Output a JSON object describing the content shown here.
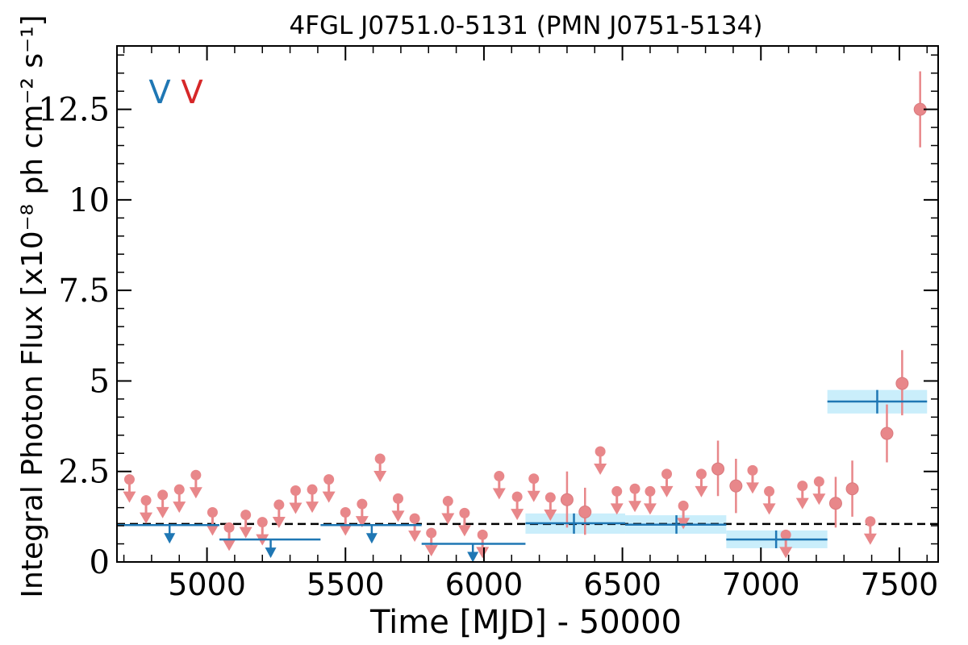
{
  "chart_data": {
    "type": "scatter",
    "title": "4FGL J0751.0-5131 (PMN J0751-5134)",
    "xlabel": "Time [MJD] - 50000",
    "ylabel": "Integral Photon Flux [x10⁻⁸ ph cm⁻² s⁻¹]",
    "xlim": [
      4675,
      7640
    ],
    "ylim": [
      0,
      14.25
    ],
    "x_ticks": [
      5000,
      5500,
      6000,
      6500,
      7000,
      7500
    ],
    "x_tick_labels": [
      "5000",
      "5500",
      "6000",
      "6500",
      "7000",
      "7500"
    ],
    "y_ticks": [
      0,
      2.5,
      5,
      7.5,
      10,
      12.5
    ],
    "y_tick_labels": [
      "0",
      "2.5",
      "5",
      "7.5",
      "10",
      "12.5"
    ],
    "legend": {
      "placement": "top-left",
      "entries": [
        {
          "label": "V",
          "color": "#1f77b4"
        },
        {
          "label": "V",
          "color": "#d62728"
        }
      ]
    },
    "reference_line": {
      "y": 1.05,
      "style": "dashed",
      "color": "#000000"
    },
    "series": [
      {
        "color": "#1f77b4",
        "band_color": "#caeefb",
        "kind": "binned",
        "detections": [
          {
            "x": 6325,
            "x_lo": 6150,
            "x_hi": 6510,
            "y": 1.07,
            "y_lo": 0.78,
            "y_hi": 1.34
          },
          {
            "x": 6695,
            "x_lo": 6510,
            "x_hi": 6875,
            "y": 1.03,
            "y_lo": 0.78,
            "y_hi": 1.29
          },
          {
            "x": 7055,
            "x_lo": 6875,
            "x_hi": 7240,
            "y": 0.62,
            "y_lo": 0.38,
            "y_hi": 0.87
          },
          {
            "x": 7420,
            "x_lo": 7240,
            "x_hi": 7600,
            "y": 4.43,
            "y_lo": 4.1,
            "y_hi": 4.75
          }
        ],
        "upper_limits": [
          {
            "x": 4865,
            "x_lo": 4675,
            "x_hi": 5045,
            "y": 1.02
          },
          {
            "x": 5230,
            "x_lo": 5045,
            "x_hi": 5410,
            "y": 0.62
          },
          {
            "x": 5595,
            "x_lo": 5410,
            "x_hi": 5775,
            "y": 1.02
          },
          {
            "x": 5960,
            "x_lo": 5775,
            "x_hi": 6150,
            "y": 0.5
          }
        ]
      },
      {
        "color": "#e8878a",
        "kind": "monthly",
        "detections": [
          {
            "x": 6300,
            "y": 1.72,
            "y_lo": 0.95,
            "y_hi": 2.5
          },
          {
            "x": 6365,
            "y": 1.38,
            "y_lo": 0.75,
            "y_hi": 2.05
          },
          {
            "x": 6845,
            "y": 2.57,
            "y_lo": 1.82,
            "y_hi": 3.35
          },
          {
            "x": 6910,
            "y": 2.1,
            "y_lo": 1.35,
            "y_hi": 2.85
          },
          {
            "x": 7270,
            "y": 1.62,
            "y_lo": 0.95,
            "y_hi": 2.35
          },
          {
            "x": 7330,
            "y": 2.02,
            "y_lo": 1.25,
            "y_hi": 2.8
          },
          {
            "x": 7455,
            "y": 3.55,
            "y_lo": 2.75,
            "y_hi": 4.35
          },
          {
            "x": 7510,
            "y": 4.93,
            "y_lo": 4.05,
            "y_hi": 5.85
          },
          {
            "x": 7575,
            "y": 12.5,
            "y_lo": 11.45,
            "y_hi": 13.55
          }
        ],
        "upper_limits": [
          {
            "x": 4720,
            "y": 2.28
          },
          {
            "x": 4780,
            "y": 1.7
          },
          {
            "x": 4840,
            "y": 1.85
          },
          {
            "x": 4900,
            "y": 2.0
          },
          {
            "x": 4960,
            "y": 2.4
          },
          {
            "x": 5020,
            "y": 1.37
          },
          {
            "x": 5080,
            "y": 0.95
          },
          {
            "x": 5140,
            "y": 1.3
          },
          {
            "x": 5200,
            "y": 1.1
          },
          {
            "x": 5260,
            "y": 1.58
          },
          {
            "x": 5320,
            "y": 1.97
          },
          {
            "x": 5380,
            "y": 2.0
          },
          {
            "x": 5440,
            "y": 2.28
          },
          {
            "x": 5500,
            "y": 1.37
          },
          {
            "x": 5560,
            "y": 1.6
          },
          {
            "x": 5625,
            "y": 2.85
          },
          {
            "x": 5690,
            "y": 1.75
          },
          {
            "x": 5750,
            "y": 1.2
          },
          {
            "x": 5810,
            "y": 0.8
          },
          {
            "x": 5870,
            "y": 1.68
          },
          {
            "x": 5930,
            "y": 1.35
          },
          {
            "x": 5995,
            "y": 0.75
          },
          {
            "x": 6055,
            "y": 2.37
          },
          {
            "x": 6120,
            "y": 1.8
          },
          {
            "x": 6180,
            "y": 2.3
          },
          {
            "x": 6240,
            "y": 1.78
          },
          {
            "x": 6420,
            "y": 3.05
          },
          {
            "x": 6480,
            "y": 1.95
          },
          {
            "x": 6545,
            "y": 2.02
          },
          {
            "x": 6600,
            "y": 1.95
          },
          {
            "x": 6660,
            "y": 2.43
          },
          {
            "x": 6720,
            "y": 1.55
          },
          {
            "x": 6785,
            "y": 2.43
          },
          {
            "x": 6970,
            "y": 2.53
          },
          {
            "x": 7030,
            "y": 1.95
          },
          {
            "x": 7090,
            "y": 0.75
          },
          {
            "x": 7150,
            "y": 2.1
          },
          {
            "x": 7210,
            "y": 2.22
          },
          {
            "x": 7395,
            "y": 1.12
          }
        ]
      }
    ]
  }
}
